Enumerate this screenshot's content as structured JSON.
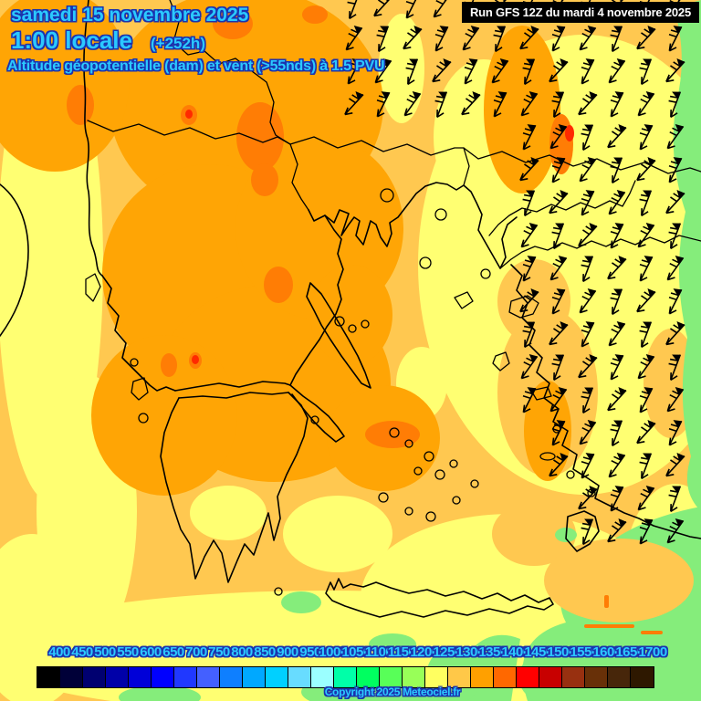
{
  "header": {
    "date": "samedi 15 novembre 2025",
    "time": "1:00 locale",
    "forecast_offset": "(+252h)",
    "parameter": "Altitude géopotentielle (dam) et vent (>55nds) à 1.5 PVU",
    "run": "Run GFS 12Z du mardi 4 novembre 2025"
  },
  "footer": {
    "copyright": "Copyright 2025 Meteociel.fr"
  },
  "legend": {
    "values": [
      "400",
      "450",
      "500",
      "550",
      "600",
      "650",
      "700",
      "750",
      "800",
      "850",
      "900",
      "950",
      "1000",
      "1050",
      "1100",
      "1150",
      "1200",
      "1250",
      "1300",
      "1350",
      "1400",
      "1450",
      "1500",
      "1550",
      "1600",
      "1650",
      "1700"
    ],
    "cell_colors": [
      "#000000",
      "#000038",
      "#000070",
      "#0000A8",
      "#0000D8",
      "#0000FF",
      "#2038FF",
      "#4460FF",
      "#0E7FFF",
      "#00A8FF",
      "#00D0FF",
      "#68DCFF",
      "#9BFFFF",
      "#00FFA8",
      "#00FF60",
      "#58FF58",
      "#98FF58",
      "#FFFF60",
      "#FFC848",
      "#FFA000",
      "#FF6800",
      "#FF0000",
      "#C80000",
      "#983010",
      "#683008",
      "#47260A",
      "#2E1800"
    ]
  },
  "map": {
    "palette": {
      "base_gold": "#FFC850",
      "pale_yellow": "#FFFF72",
      "orange": "#FFA505",
      "dark_orange": "#FF7D05",
      "red_spot": "#FF2A00",
      "green": "#85ED7B",
      "coastline": "#000000",
      "wind_barb": "#000000"
    },
    "caption_color": "#2BC9FF",
    "caption_outline": "#1B33AE",
    "wind_barbs": {
      "col_start": 388,
      "col_step": 32,
      "col_end": 756,
      "row_start": 6,
      "row_step": 36,
      "row_end": 582
    }
  }
}
